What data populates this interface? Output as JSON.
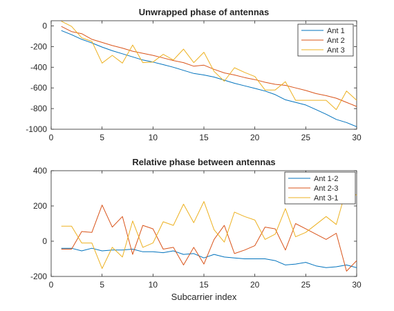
{
  "chart_data": [
    {
      "type": "line",
      "title": "Unwrapped phase of antennas",
      "xlabel": "",
      "ylabel": "",
      "xlim": [
        0,
        30
      ],
      "ylim": [
        -1000,
        50
      ],
      "xticks": [
        0,
        5,
        10,
        15,
        20,
        25,
        30
      ],
      "yticks": [
        0,
        -200,
        -400,
        -600,
        -800,
        -1000
      ],
      "grid": false,
      "legend_position": "top-right",
      "x": [
        1,
        2,
        3,
        4,
        5,
        6,
        7,
        8,
        9,
        10,
        11,
        12,
        13,
        14,
        15,
        16,
        17,
        18,
        19,
        20,
        21,
        22,
        23,
        24,
        25,
        26,
        27,
        28,
        29,
        30
      ],
      "series": [
        {
          "name": "Ant 1",
          "color": "#0072BD",
          "values": [
            -45,
            -85,
            -130,
            -165,
            -205,
            -240,
            -270,
            -300,
            -330,
            -350,
            -375,
            -400,
            -430,
            -460,
            -475,
            -495,
            -525,
            -555,
            -580,
            -605,
            -630,
            -665,
            -715,
            -740,
            -765,
            -810,
            -855,
            -905,
            -935,
            -975
          ]
        },
        {
          "name": "Ant 2",
          "color": "#D95319",
          "values": [
            -5,
            -55,
            -75,
            -130,
            -160,
            -190,
            -215,
            -245,
            -265,
            -285,
            -310,
            -335,
            -355,
            -390,
            -380,
            -420,
            -455,
            -475,
            -500,
            -520,
            -545,
            -565,
            -575,
            -600,
            -625,
            -655,
            -675,
            -700,
            -740,
            -780
          ]
        },
        {
          "name": "Ant 3",
          "color": "#EDB120",
          "values": [
            45,
            -5,
            -115,
            -150,
            -360,
            -285,
            -360,
            -185,
            -355,
            -350,
            -275,
            -330,
            -225,
            -355,
            -255,
            -440,
            -535,
            -405,
            -450,
            -490,
            -620,
            -620,
            -540,
            -720,
            -720,
            -720,
            -720,
            -810,
            -630,
            -720
          ]
        }
      ]
    },
    {
      "type": "line",
      "title": "Relative phase between antennas",
      "xlabel": "Subcarrier index",
      "ylabel": "",
      "xlim": [
        0,
        30
      ],
      "ylim": [
        -200,
        400
      ],
      "xticks": [
        0,
        5,
        10,
        15,
        20,
        25,
        30
      ],
      "yticks": [
        400,
        200,
        0,
        -200
      ],
      "grid": false,
      "legend_position": "top-right",
      "x": [
        1,
        2,
        3,
        4,
        5,
        6,
        7,
        8,
        9,
        10,
        11,
        12,
        13,
        14,
        15,
        16,
        17,
        18,
        19,
        20,
        21,
        22,
        23,
        24,
        25,
        26,
        27,
        28,
        29,
        30
      ],
      "series": [
        {
          "name": "Ant 1-2",
          "color": "#0072BD",
          "values": [
            -40,
            -40,
            -55,
            -40,
            -55,
            -50,
            -50,
            -45,
            -60,
            -60,
            -65,
            -55,
            -75,
            -70,
            -95,
            -75,
            -90,
            -95,
            -100,
            -100,
            -100,
            -110,
            -135,
            -130,
            -120,
            -140,
            -150,
            -145,
            -135,
            -150
          ]
        },
        {
          "name": "Ant 2-3",
          "color": "#D95319",
          "values": [
            -45,
            -45,
            55,
            50,
            205,
            80,
            140,
            -75,
            90,
            70,
            -45,
            -35,
            -135,
            -35,
            -130,
            10,
            90,
            -70,
            -50,
            -25,
            80,
            70,
            -50,
            100,
            70,
            40,
            10,
            45,
            -170,
            -110
          ]
        },
        {
          "name": "Ant 3-1",
          "color": "#EDB120",
          "values": [
            85,
            85,
            -10,
            -10,
            -155,
            -35,
            -90,
            115,
            -35,
            -10,
            110,
            90,
            210,
            105,
            225,
            65,
            -5,
            165,
            140,
            120,
            10,
            40,
            185,
            25,
            50,
            95,
            140,
            95,
            300,
            260
          ]
        }
      ]
    }
  ]
}
